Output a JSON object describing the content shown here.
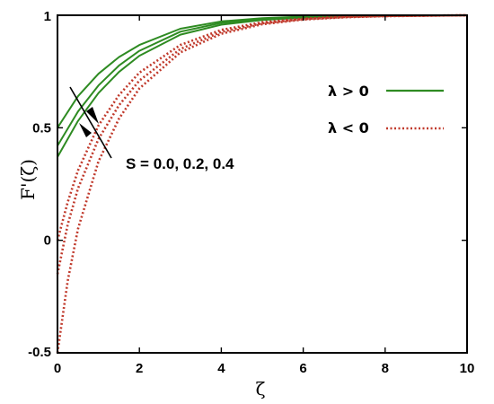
{
  "chart_data": {
    "type": "line",
    "xlabel": "ζ",
    "ylabel": "F'(ζ)",
    "xlim": [
      0,
      10
    ],
    "ylim": [
      -0.5,
      1
    ],
    "xticks": [
      "0",
      "2",
      "4",
      "6",
      "8",
      "10"
    ],
    "yticks": [
      "-0.5",
      "0",
      "0.5",
      "1"
    ],
    "grid": false,
    "legend_position": "right",
    "legend": [
      {
        "label": "λ > 0",
        "style": "solid",
        "color": "#2e8b22"
      },
      {
        "label": "λ < 0",
        "style": "dotted",
        "color": "#c0392b"
      }
    ],
    "annotation": "S = 0.0, 0.2, 0.4",
    "series": [
      {
        "group": "λ > 0",
        "style": "solid",
        "color": "#2e8b22",
        "x": [
          0,
          0.5,
          1,
          1.5,
          2,
          3,
          4,
          5,
          6,
          7,
          8,
          10
        ],
        "y": [
          0.37,
          0.53,
          0.654,
          0.748,
          0.82,
          0.914,
          0.958,
          0.979,
          0.989,
          0.995,
          0.997,
          1.0
        ]
      },
      {
        "group": "λ > 0",
        "style": "solid",
        "color": "#2e8b22",
        "x": [
          0,
          0.5,
          1,
          1.5,
          2,
          3,
          4,
          5,
          6,
          7,
          8,
          10
        ],
        "y": [
          0.42,
          0.572,
          0.688,
          0.776,
          0.842,
          0.927,
          0.966,
          0.983,
          0.992,
          0.996,
          0.998,
          1.0
        ]
      },
      {
        "group": "λ > 0",
        "style": "solid",
        "color": "#2e8b22",
        "x": [
          0,
          0.5,
          1,
          1.5,
          2,
          3,
          4,
          5,
          6,
          7,
          8,
          10
        ],
        "y": [
          0.5,
          0.64,
          0.74,
          0.814,
          0.868,
          0.94,
          0.973,
          0.987,
          0.994,
          0.997,
          0.999,
          1.0
        ]
      },
      {
        "group": "λ < 0",
        "style": "dotted",
        "color": "#c0392b",
        "x": [
          0,
          0.25,
          0.5,
          1,
          1.5,
          2,
          3,
          4,
          5,
          6,
          7,
          8,
          10
        ],
        "y": [
          -0.5,
          -0.18,
          0.05,
          0.35,
          0.54,
          0.675,
          0.835,
          0.918,
          0.96,
          0.981,
          0.991,
          0.996,
          1.0
        ]
      },
      {
        "group": "λ < 0",
        "style": "dotted",
        "color": "#c0392b",
        "x": [
          0,
          0.25,
          0.5,
          1,
          1.5,
          2,
          3,
          4,
          5,
          6,
          7,
          8,
          10
        ],
        "y": [
          -0.15,
          0.07,
          0.23,
          0.45,
          0.6,
          0.71,
          0.85,
          0.926,
          0.964,
          0.983,
          0.992,
          0.997,
          1.0
        ]
      },
      {
        "group": "λ < 0",
        "style": "dotted",
        "color": "#c0392b",
        "x": [
          0,
          0.25,
          0.5,
          1,
          1.5,
          2,
          3,
          4,
          5,
          6,
          7,
          8,
          10
        ],
        "y": [
          0.0,
          0.17,
          0.31,
          0.51,
          0.645,
          0.745,
          0.868,
          0.935,
          0.969,
          0.985,
          0.993,
          0.997,
          1.0
        ]
      }
    ]
  }
}
